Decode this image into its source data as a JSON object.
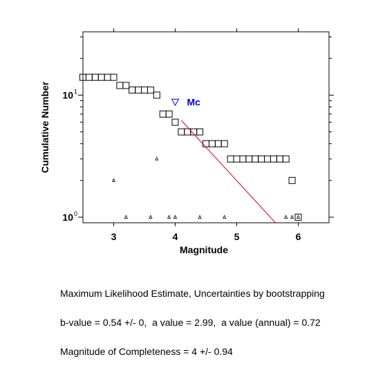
{
  "chart_data": {
    "type": "scatter",
    "xlabel": "Magnitude",
    "ylabel": "Cumulative Number",
    "xlim": [
      2.5,
      6.5
    ],
    "ylim": [
      0.9,
      33
    ],
    "yscale": "log",
    "xticks": [
      3,
      4,
      5,
      6
    ],
    "ytick_labels": [
      {
        "value": 1,
        "base": "10",
        "exp": "0"
      },
      {
        "value": 10,
        "base": "10",
        "exp": "1"
      }
    ],
    "grid": false,
    "series": [
      {
        "marker": "square",
        "color": "#000000",
        "points": [
          [
            2.5,
            14
          ],
          [
            2.6,
            14
          ],
          [
            2.7,
            14
          ],
          [
            2.8,
            14
          ],
          [
            2.9,
            14
          ],
          [
            3.0,
            14
          ],
          [
            3.1,
            12
          ],
          [
            3.2,
            12
          ],
          [
            3.3,
            11
          ],
          [
            3.4,
            11
          ],
          [
            3.5,
            11
          ],
          [
            3.6,
            11
          ],
          [
            3.7,
            10
          ],
          [
            3.8,
            7
          ],
          [
            3.9,
            7
          ],
          [
            4.0,
            6
          ],
          [
            4.1,
            5
          ],
          [
            4.2,
            5
          ],
          [
            4.3,
            5
          ],
          [
            4.4,
            5
          ],
          [
            4.5,
            4
          ],
          [
            4.6,
            4
          ],
          [
            4.7,
            4
          ],
          [
            4.8,
            4
          ],
          [
            4.9,
            3
          ],
          [
            5.0,
            3
          ],
          [
            5.1,
            3
          ],
          [
            5.2,
            3
          ],
          [
            5.3,
            3
          ],
          [
            5.4,
            3
          ],
          [
            5.5,
            3
          ],
          [
            5.6,
            3
          ],
          [
            5.7,
            3
          ],
          [
            5.8,
            3
          ],
          [
            5.9,
            2
          ],
          [
            6.0,
            1
          ]
        ]
      },
      {
        "marker": "triangle",
        "color": "#000000",
        "points": [
          [
            3.0,
            2
          ],
          [
            3.2,
            1
          ],
          [
            3.6,
            1
          ],
          [
            3.7,
            3
          ],
          [
            3.9,
            1
          ],
          [
            4.0,
            1
          ],
          [
            4.4,
            1
          ],
          [
            4.8,
            1
          ],
          [
            5.8,
            1
          ],
          [
            5.9,
            1
          ],
          [
            6.0,
            1
          ]
        ]
      },
      {
        "marker": "line",
        "color": "#dd0000",
        "points": [
          [
            4.1,
            6.2
          ],
          [
            5.63,
            0.9
          ]
        ]
      }
    ],
    "annotations": [
      {
        "text": "Mc",
        "marker": "inverted-triangle",
        "color": "#0000cc",
        "x": 4.0,
        "y": 8.8
      }
    ]
  },
  "summary": {
    "line1": "Maximum Likelihood Estimate, Uncertainties by bootstrapping",
    "line2": "b-value = 0.54 +/- 0,  a value = 2.99,  a value (annual) = 0.72",
    "line3": "Magnitude of Completeness = 4 +/- 0.94"
  }
}
